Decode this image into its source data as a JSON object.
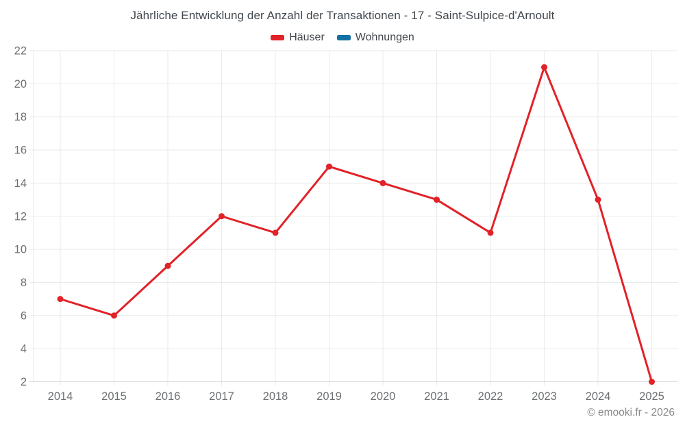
{
  "chart_data": {
    "type": "line",
    "title": "Jährliche Entwicklung der Anzahl der Transaktionen - 17 - Saint-Sulpice-d'Arnoult",
    "categories": [
      "2014",
      "2015",
      "2016",
      "2017",
      "2018",
      "2019",
      "2020",
      "2021",
      "2022",
      "2023",
      "2024",
      "2025"
    ],
    "series": [
      {
        "name": "Häuser",
        "color": "#e12228",
        "values": [
          7,
          6,
          9,
          12,
          11,
          15,
          14,
          13,
          11,
          21,
          13,
          2
        ]
      },
      {
        "name": "Wohnungen",
        "color": "#1171a3",
        "values": []
      }
    ],
    "ylim": [
      2,
      22
    ],
    "yticks": [
      2,
      4,
      6,
      8,
      10,
      12,
      14,
      16,
      18,
      20,
      22
    ],
    "grid": true,
    "legend_position": "top"
  },
  "footer": {
    "copyright": "© emooki.fr - 2026"
  },
  "colors": {
    "background": "#ffffff",
    "grid": "#e9eaeb",
    "axis": "#d4d5d6",
    "tick_text": "#6d7073",
    "title_text": "#40464c",
    "footer_text": "#87898b"
  }
}
